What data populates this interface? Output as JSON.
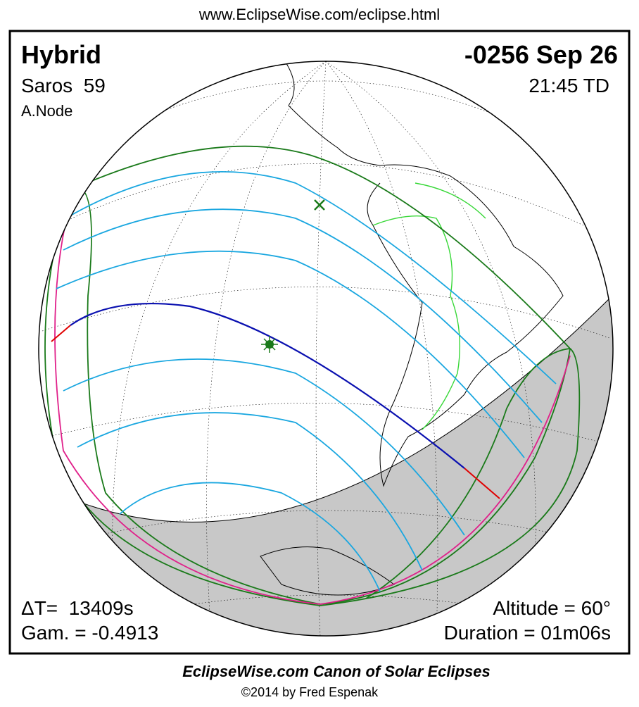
{
  "url": "www.EclipseWise.com/eclipse.html",
  "header": {
    "type": "Hybrid",
    "date": "-0256 Sep 26",
    "saros": "Saros  59",
    "time": "21:45 TD",
    "node": "A.Node"
  },
  "footer": {
    "delta_t": "ΔT=  13409s",
    "altitude": "Altitude = 60°",
    "gamma": "Gam. = -0.4913",
    "duration": "Duration = 01m06s"
  },
  "credit": {
    "title": "EclipseWise.com Canon of Solar Eclipses",
    "copyright": "©2014 by Fred Espenak"
  }
}
